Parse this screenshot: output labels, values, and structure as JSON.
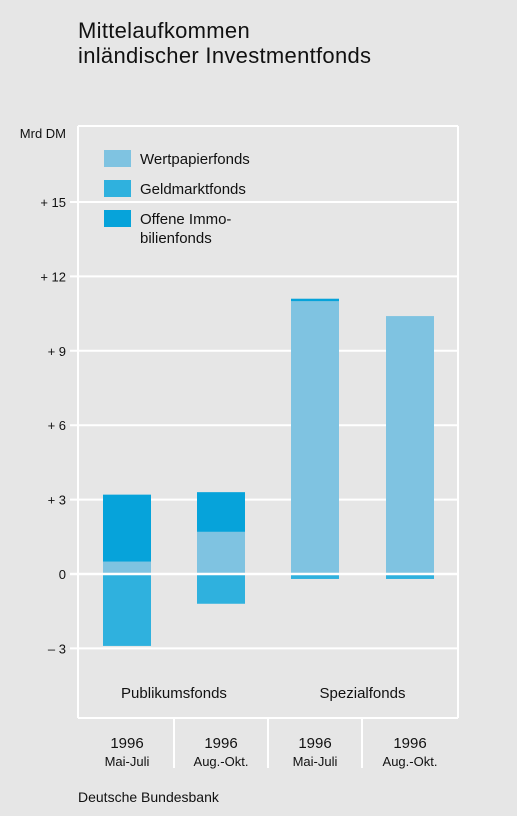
{
  "title_lines": [
    "Mittelaufkommen",
    "inländischer Investmentfonds"
  ],
  "source": "Deutsche Bundesbank",
  "colors": {
    "background": "#e6e6e6",
    "grid": "#ffffff",
    "wertpapierfonds": "#7fc3e1",
    "geldmarktfonds": "#2fb1de",
    "immobilienfonds": "#06a3da"
  },
  "chart_data": {
    "type": "bar",
    "stacked": true,
    "yunit": "Mrd DM",
    "ylim": [
      -5,
      18
    ],
    "yticks": [
      {
        "value": 15,
        "label": "+ 15"
      },
      {
        "value": 12,
        "label": "+ 12"
      },
      {
        "value": 9,
        "label": "+   9"
      },
      {
        "value": 6,
        "label": "+   6"
      },
      {
        "value": 3,
        "label": "+   3"
      },
      {
        "value": 0,
        "label": "0"
      },
      {
        "value": -3,
        "label": "–  3"
      }
    ],
    "grid": true,
    "legend_position": "top-left",
    "categories": [
      {
        "year": "1996",
        "period": "Mai-Juli"
      },
      {
        "year": "1996",
        "period": "Aug.-Okt."
      },
      {
        "year": "1996",
        "period": "Mai-Juli"
      },
      {
        "year": "1996",
        "period": "Aug.-Okt."
      }
    ],
    "groups": [
      {
        "label": "Publikumsfonds",
        "categories": [
          0,
          1
        ]
      },
      {
        "label": "Spezialfonds",
        "categories": [
          2,
          3
        ]
      }
    ],
    "series": [
      {
        "name": "Wertpapierfonds",
        "legend_lines": [
          "Wertpapierfonds"
        ],
        "color": "#7fc3e1",
        "values": [
          0.5,
          1.7,
          11.0,
          10.4
        ]
      },
      {
        "name": "Geldmarktfonds",
        "legend_lines": [
          "Geldmarktfonds"
        ],
        "color": "#2fb1de",
        "values": [
          -2.9,
          -1.2,
          -0.2,
          -0.2
        ]
      },
      {
        "name": "Offene Immobilienfonds",
        "legend_lines": [
          "Offene Immo-",
          "bilienfonds"
        ],
        "color": "#06a3da",
        "values": [
          2.7,
          1.6,
          0.1,
          0.0
        ]
      }
    ]
  }
}
